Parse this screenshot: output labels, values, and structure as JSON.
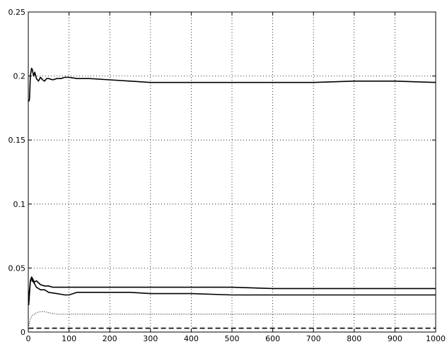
{
  "chart_data": {
    "type": "line",
    "title": "",
    "xlabel": "",
    "ylabel": "",
    "xlim": [
      0,
      1000
    ],
    "ylim": [
      0,
      0.25
    ],
    "grid": true,
    "x_ticks": [
      "0",
      "100",
      "200",
      "300",
      "400",
      "500",
      "600",
      "700",
      "800",
      "900",
      "1000"
    ],
    "y_ticks": [
      "0",
      "0.05",
      "0.1",
      "0.15",
      "0.2",
      "0.25"
    ],
    "series": [
      {
        "style": "solid",
        "points": [
          [
            1,
            0.18
          ],
          [
            3,
            0.182
          ],
          [
            5,
            0.2
          ],
          [
            8,
            0.206
          ],
          [
            10,
            0.205
          ],
          [
            13,
            0.2
          ],
          [
            16,
            0.203
          ],
          [
            20,
            0.198
          ],
          [
            25,
            0.196
          ],
          [
            30,
            0.199
          ],
          [
            35,
            0.197
          ],
          [
            40,
            0.196
          ],
          [
            45,
            0.198
          ],
          [
            50,
            0.198
          ],
          [
            60,
            0.197
          ],
          [
            70,
            0.198
          ],
          [
            80,
            0.198
          ],
          [
            90,
            0.199
          ],
          [
            100,
            0.199
          ],
          [
            120,
            0.198
          ],
          [
            150,
            0.198
          ],
          [
            200,
            0.197
          ],
          [
            250,
            0.196
          ],
          [
            300,
            0.195
          ],
          [
            350,
            0.195
          ],
          [
            400,
            0.195
          ],
          [
            500,
            0.195
          ],
          [
            600,
            0.195
          ],
          [
            700,
            0.195
          ],
          [
            800,
            0.196
          ],
          [
            850,
            0.196
          ],
          [
            900,
            0.196
          ],
          [
            1000,
            0.195
          ]
        ]
      },
      {
        "style": "solid",
        "points": [
          [
            1,
            0.021
          ],
          [
            3,
            0.03
          ],
          [
            5,
            0.04
          ],
          [
            8,
            0.043
          ],
          [
            10,
            0.042
          ],
          [
            15,
            0.039
          ],
          [
            20,
            0.04
          ],
          [
            30,
            0.037
          ],
          [
            40,
            0.036
          ],
          [
            50,
            0.036
          ],
          [
            60,
            0.035
          ],
          [
            80,
            0.035
          ],
          [
            100,
            0.035
          ],
          [
            150,
            0.035
          ],
          [
            200,
            0.035
          ],
          [
            300,
            0.035
          ],
          [
            400,
            0.035
          ],
          [
            500,
            0.035
          ],
          [
            600,
            0.034
          ],
          [
            700,
            0.034
          ],
          [
            800,
            0.034
          ],
          [
            900,
            0.034
          ],
          [
            1000,
            0.034
          ]
        ]
      },
      {
        "style": "solid",
        "points": [
          [
            1,
            0.028
          ],
          [
            3,
            0.033
          ],
          [
            5,
            0.039
          ],
          [
            8,
            0.042
          ],
          [
            10,
            0.04
          ],
          [
            15,
            0.038
          ],
          [
            20,
            0.035
          ],
          [
            30,
            0.033
          ],
          [
            40,
            0.033
          ],
          [
            50,
            0.031
          ],
          [
            70,
            0.03
          ],
          [
            90,
            0.029
          ],
          [
            100,
            0.029
          ],
          [
            120,
            0.031
          ],
          [
            150,
            0.031
          ],
          [
            200,
            0.031
          ],
          [
            250,
            0.031
          ],
          [
            300,
            0.03
          ],
          [
            400,
            0.03
          ],
          [
            500,
            0.029
          ],
          [
            600,
            0.029
          ],
          [
            700,
            0.029
          ],
          [
            800,
            0.029
          ],
          [
            900,
            0.029
          ],
          [
            1000,
            0.029
          ]
        ]
      },
      {
        "style": "dotted",
        "points": [
          [
            1,
            0.005
          ],
          [
            5,
            0.01
          ],
          [
            10,
            0.013
          ],
          [
            20,
            0.015
          ],
          [
            30,
            0.016
          ],
          [
            40,
            0.016
          ],
          [
            50,
            0.015
          ],
          [
            70,
            0.014
          ],
          [
            100,
            0.014
          ],
          [
            150,
            0.014
          ],
          [
            200,
            0.014
          ],
          [
            300,
            0.014
          ],
          [
            400,
            0.014
          ],
          [
            500,
            0.014
          ],
          [
            600,
            0.014
          ],
          [
            700,
            0.014
          ],
          [
            800,
            0.014
          ],
          [
            900,
            0.014
          ],
          [
            1000,
            0.014
          ]
        ]
      },
      {
        "style": "dashed",
        "points": [
          [
            1,
            0.003
          ],
          [
            50,
            0.003
          ],
          [
            100,
            0.003
          ],
          [
            200,
            0.003
          ],
          [
            300,
            0.003
          ],
          [
            400,
            0.003
          ],
          [
            500,
            0.003
          ],
          [
            600,
            0.003
          ],
          [
            700,
            0.003
          ],
          [
            800,
            0.003
          ],
          [
            900,
            0.003
          ],
          [
            1000,
            0.003
          ]
        ]
      }
    ]
  }
}
